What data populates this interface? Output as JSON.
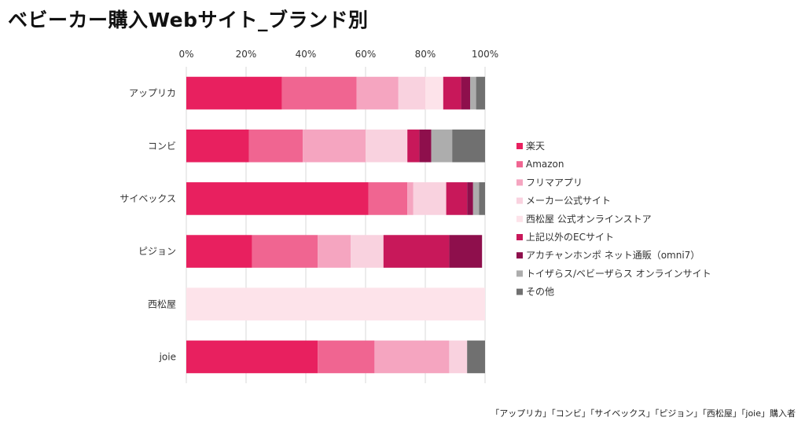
{
  "title": "ベビーカー購入Webサイト_ブランド別",
  "footnote": "「アップリカ」「コンビ」「サイベックス」「ピジョン」「西松屋」「joie」購入者",
  "chart_data": {
    "type": "bar",
    "orientation": "horizontal",
    "stacked": true,
    "percent_axis": true,
    "xlim": [
      0,
      100
    ],
    "xticks": [
      0,
      20,
      40,
      60,
      80,
      100
    ],
    "tick_labels": [
      "0%",
      "20%",
      "40%",
      "60%",
      "80%",
      "100%"
    ],
    "grid": true,
    "legend_position": "right",
    "categories": [
      "アップリカ",
      "コンビ",
      "サイベックス",
      "ピジョン",
      "西松屋",
      "joie"
    ],
    "series": [
      {
        "name": "楽天",
        "color": "#E8205F",
        "values": [
          32,
          21,
          61,
          22,
          0,
          44
        ]
      },
      {
        "name": "Amazon",
        "color": "#F06591",
        "values": [
          25,
          18,
          13,
          22,
          0,
          19
        ]
      },
      {
        "name": "フリマアプリ",
        "color": "#F5A5C0",
        "values": [
          14,
          21,
          2,
          11,
          0,
          25
        ]
      },
      {
        "name": "メーカー公式サイト",
        "color": "#F9D2DF",
        "values": [
          9,
          14,
          11,
          11,
          0,
          6
        ]
      },
      {
        "name": "西松屋 公式オンラインストア",
        "color": "#FDE3EA",
        "values": [
          6,
          0,
          0,
          0,
          100,
          0
        ]
      },
      {
        "name": "上記以外のECサイト",
        "color": "#C8185A",
        "values": [
          6,
          4,
          7,
          22,
          0,
          0
        ]
      },
      {
        "name": "アカチャンホンポ ネット通販（omni7）",
        "color": "#8E0F4C",
        "values": [
          3,
          4,
          2,
          11,
          0,
          0
        ]
      },
      {
        "name": "トイザらス/ベビーザらス オンラインサイト",
        "color": "#ADADAD",
        "values": [
          2,
          7,
          2,
          0,
          0,
          0
        ]
      },
      {
        "name": "その他",
        "color": "#707070",
        "values": [
          3,
          11,
          2,
          0,
          0,
          6
        ]
      }
    ]
  }
}
